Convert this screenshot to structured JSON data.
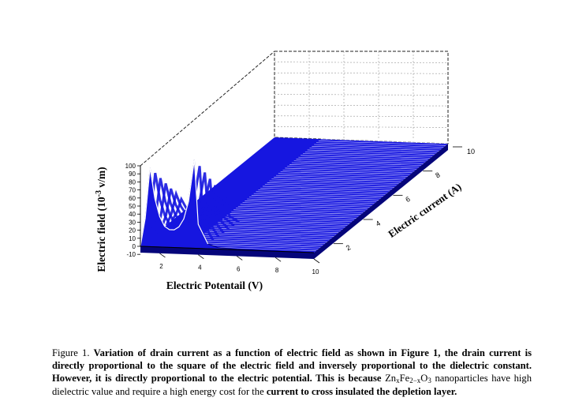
{
  "chart_data": {
    "type": "area",
    "view": "3d-waterfall",
    "x_axis": {
      "label": "Electric Potentail (V)",
      "ticks": [
        2,
        4,
        6,
        8,
        10
      ],
      "range": [
        1,
        10
      ]
    },
    "y_axis": {
      "label_prefix": "Electric field (10",
      "label_exp": "-3",
      "label_suffix": " v/m)",
      "ticks": [
        -10,
        0,
        10,
        20,
        30,
        40,
        50,
        60,
        70,
        80,
        90,
        100
      ],
      "range": [
        -10,
        100
      ]
    },
    "z_axis": {
      "label": "Electric current (A)",
      "ticks": [
        2,
        4,
        6,
        8,
        10
      ],
      "range": [
        1,
        10
      ]
    },
    "series": [
      {
        "values": [
          [
            1.0,
            0
          ],
          [
            1.25,
            35
          ],
          [
            1.5,
            98
          ],
          [
            1.75,
            60
          ],
          [
            2.0,
            38
          ],
          [
            2.25,
            26
          ],
          [
            2.5,
            22
          ],
          [
            2.75,
            22
          ],
          [
            3.0,
            26
          ],
          [
            3.25,
            36
          ],
          [
            3.5,
            58
          ],
          [
            3.8,
            110
          ],
          [
            4.0,
            30
          ],
          [
            4.5,
            6
          ],
          [
            5.0,
            2
          ],
          [
            6.0,
            0.5
          ],
          [
            8.0,
            0
          ],
          [
            10.0,
            0
          ]
        ]
      }
    ],
    "colors": {
      "fill": "#1616e0",
      "dark": "#05057a",
      "grid": "#1a1a1a"
    },
    "grid": true,
    "legend": "none"
  },
  "caption": {
    "lead": "Figure 1. ",
    "bold1": "Variation of drain current as a function of electric field as shown in Figure 1, the drain current is directly proportional to the square of the electric field and inversely proportional to the dielectric constant. However, it is directly proportional to the electric potential. This is because ",
    "formula_a": "Zn",
    "formula_b": "x",
    "formula_c": "Fe",
    "formula_d": "2−x",
    "formula_e": "O",
    "formula_f": "3",
    "normal": " nanoparticles have high dielectric value and require a high energy cost for the ",
    "bold2": "current to cross insulated the depletion layer."
  }
}
